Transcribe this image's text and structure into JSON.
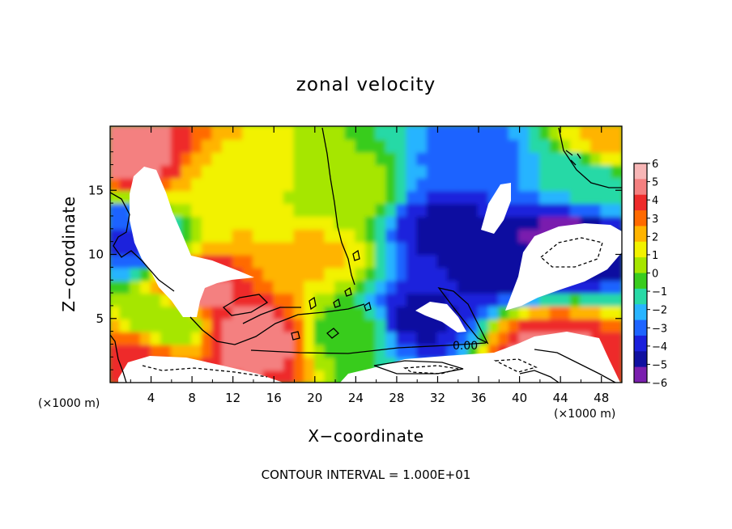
{
  "chart_data": {
    "type": "heatmap",
    "title": "zonal velocity",
    "xlabel": "X−coordinate",
    "ylabel": "Z−coordinate",
    "x_unit": "(×1000 m)",
    "z_unit": "(×1000 m)",
    "xlim": [
      0,
      50
    ],
    "ylim": [
      0,
      20
    ],
    "x_ticks": [
      "4",
      "8",
      "12",
      "16",
      "20",
      "24",
      "28",
      "32",
      "36",
      "40",
      "44",
      "48"
    ],
    "y_ticks": [
      "5",
      "10",
      "15"
    ],
    "colorbar": {
      "range": [
        -6,
        6
      ],
      "ticks": [
        "6",
        "5",
        "4",
        "3",
        "2",
        "1",
        "0",
        "−1",
        "−2",
        "−3",
        "−4",
        "−5",
        "−6"
      ],
      "colors": [
        "#f7b6b6",
        "#f48080",
        "#ee2b2b",
        "#ff6a00",
        "#ffb400",
        "#f2f200",
        "#a6e600",
        "#39cc1e",
        "#28d9a6",
        "#28b4ff",
        "#1e64ff",
        "#1a20dc",
        "#1010a0",
        "#7a1fae"
      ]
    },
    "field_features": [
      {
        "kind": "max",
        "x": 3,
        "z": 18,
        "value": 4.5
      },
      {
        "kind": "max",
        "x": 9,
        "z": 7,
        "value": 4.5
      },
      {
        "kind": "max",
        "x": 14,
        "z": 3.5,
        "value": 5
      },
      {
        "kind": "max",
        "x": 12,
        "z": 16,
        "value": 1.5
      },
      {
        "kind": "max",
        "x": 20,
        "z": 10,
        "value": 1.8
      },
      {
        "kind": "max",
        "x": 2,
        "z": 1.5,
        "value": 4
      },
      {
        "kind": "max",
        "x": 43,
        "z": 2.5,
        "value": 4.5
      },
      {
        "kind": "max",
        "x": 49,
        "z": 19,
        "value": 2
      },
      {
        "kind": "min",
        "x": 33,
        "z": 12,
        "value": -4.5
      },
      {
        "kind": "min",
        "x": 38,
        "z": 10,
        "value": -5
      },
      {
        "kind": "min",
        "x": 44,
        "z": 11,
        "value": -5.5
      },
      {
        "kind": "min",
        "x": 30,
        "z": 5,
        "value": -4.5
      },
      {
        "kind": "min",
        "x": 36,
        "z": 17,
        "value": -3
      },
      {
        "kind": "min",
        "x": 1,
        "z": 11,
        "value": -3.5
      },
      {
        "kind": "near0",
        "x": 23,
        "z": 15,
        "value": 0.3
      },
      {
        "kind": "near0",
        "x": 6,
        "z": 5,
        "value": 0
      },
      {
        "kind": "near0",
        "x": 24,
        "z": 4,
        "value": -0.5
      },
      {
        "kind": "near0",
        "x": 46,
        "z": 16,
        "value": -1.5
      }
    ],
    "contour_label": "0.00",
    "contour_interval_text": "CONTOUR INTERVAL = 1.000E+01"
  }
}
